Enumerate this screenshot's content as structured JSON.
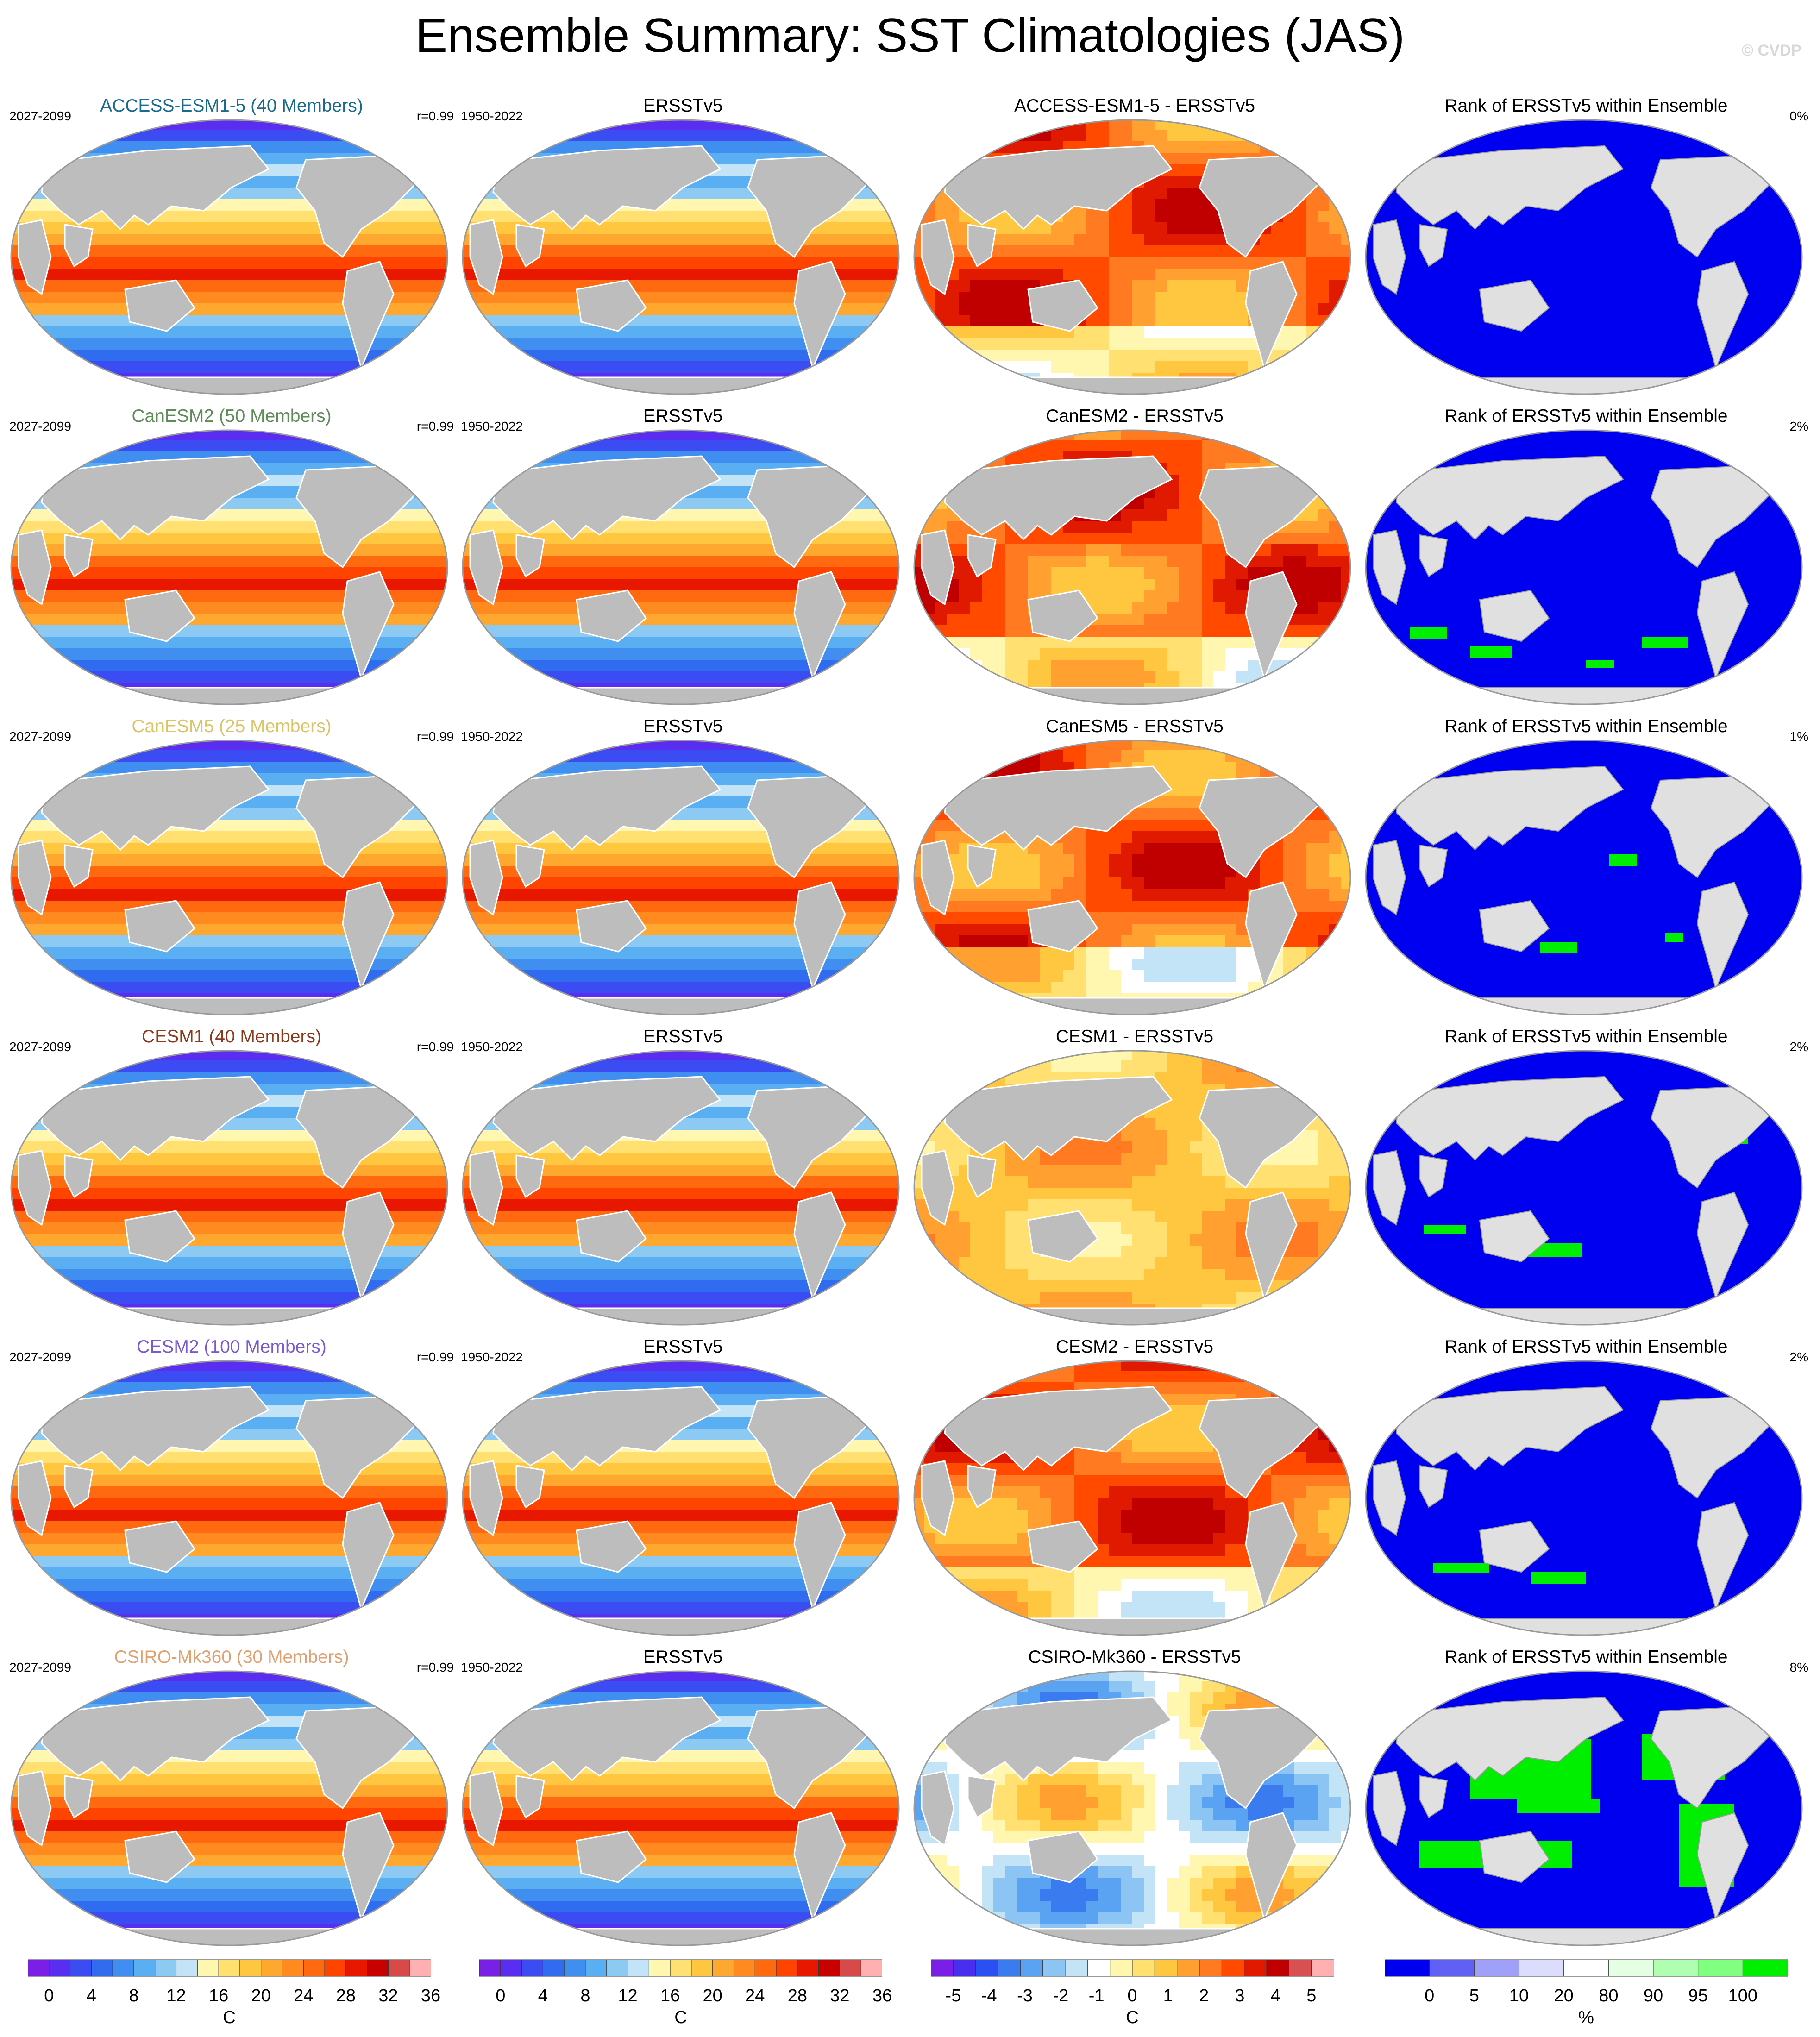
{
  "title": "Ensemble Summary: SST Climatologies (JAS)",
  "watermark": "© CVDP",
  "columns": [
    "model",
    "observed",
    "difference",
    "rank"
  ],
  "rows": [
    {
      "model_title": "ACCESS-ESM1-5 (40 Members)",
      "model_color": "#1a6a8e",
      "model_years": "2027-2099",
      "model_r": "r=0.99",
      "obs_title": "ERSSTv5",
      "obs_years": "1950-2022",
      "diff_title": "ACCESS-ESM1-5 - ERSSTv5",
      "rank_title": "Rank of ERSSTv5 within Ensemble",
      "rank_pct": "0%"
    },
    {
      "model_title": "CanESM2 (50 Members)",
      "model_color": "#5f8a5a",
      "model_years": "2027-2099",
      "model_r": "r=0.99",
      "obs_title": "ERSSTv5",
      "obs_years": "1950-2022",
      "diff_title": "CanESM2 - ERSSTv5",
      "rank_title": "Rank of ERSSTv5 within Ensemble",
      "rank_pct": "2%"
    },
    {
      "model_title": "CanESM5 (25 Members)",
      "model_color": "#d9c46a",
      "model_years": "2027-2099",
      "model_r": "r=0.99",
      "obs_title": "ERSSTv5",
      "obs_years": "1950-2022",
      "diff_title": "CanESM5 - ERSSTv5",
      "rank_title": "Rank of ERSSTv5 within Ensemble",
      "rank_pct": "1%"
    },
    {
      "model_title": "CESM1 (40 Members)",
      "model_color": "#8a3a1a",
      "model_years": "2027-2099",
      "model_r": "r=0.99",
      "obs_title": "ERSSTv5",
      "obs_years": "1950-2022",
      "diff_title": "CESM1 - ERSSTv5",
      "rank_title": "Rank of ERSSTv5 within Ensemble",
      "rank_pct": "2%"
    },
    {
      "model_title": "CESM2 (100 Members)",
      "model_color": "#7a5ad0",
      "model_years": "2027-2099",
      "model_r": "r=0.99",
      "obs_title": "ERSSTv5",
      "obs_years": "1950-2022",
      "diff_title": "CESM2 - ERSSTv5",
      "rank_title": "Rank of ERSSTv5 within Ensemble",
      "rank_pct": "2%"
    },
    {
      "model_title": "CSIRO-Mk360 (30 Members)",
      "model_color": "#e0a070",
      "model_years": "2027-2099",
      "model_r": "r=0.99",
      "obs_title": "ERSSTv5",
      "obs_years": "1950-2022",
      "diff_title": "CSIRO-Mk360 - ERSSTv5",
      "rank_title": "Rank of ERSSTv5 within Ensemble",
      "rank_pct": "8%"
    }
  ],
  "colorbars": [
    {
      "unit": "C",
      "ticks": [
        "0",
        "4",
        "8",
        "12",
        "16",
        "20",
        "24",
        "28",
        "32",
        "36"
      ],
      "colors": [
        "#7a1fe6",
        "#5a2ef0",
        "#3a4cf2",
        "#2f6cf0",
        "#3f8ef0",
        "#5aaef2",
        "#8ccaf4",
        "#c2e4f6",
        "#fff7b0",
        "#ffe070",
        "#ffc640",
        "#ffa830",
        "#ff8a20",
        "#ff6a10",
        "#ff4400",
        "#e81800",
        "#c80000",
        "#d84a4a",
        "#ffb0b0"
      ]
    },
    {
      "unit": "C",
      "ticks": [
        "0",
        "4",
        "8",
        "12",
        "16",
        "20",
        "24",
        "28",
        "32",
        "36"
      ],
      "colors": [
        "#7a1fe6",
        "#5a2ef0",
        "#3a4cf2",
        "#2f6cf0",
        "#3f8ef0",
        "#5aaef2",
        "#8ccaf4",
        "#c2e4f6",
        "#fff7b0",
        "#ffe070",
        "#ffc640",
        "#ffa830",
        "#ff8a20",
        "#ff6a10",
        "#ff4400",
        "#e81800",
        "#c80000",
        "#d84a4a",
        "#ffb0b0"
      ]
    },
    {
      "unit": "C",
      "ticks": [
        "-5",
        "-4",
        "-3",
        "-2",
        "-1",
        "0",
        "1",
        "2",
        "3",
        "4",
        "5"
      ],
      "colors": [
        "#7a1fe6",
        "#4a2ef0",
        "#2a50f2",
        "#3a7cf0",
        "#5aa2f2",
        "#8cc4f4",
        "#c2e4f6",
        "#ffffff",
        "#fff7b0",
        "#ffe070",
        "#ffc640",
        "#ffa030",
        "#ff7a20",
        "#ff4a00",
        "#e01a00",
        "#c00000",
        "#d85050",
        "#ffb0b0"
      ]
    },
    {
      "unit": "%",
      "ticks": [
        "0",
        "5",
        "10",
        "20",
        "80",
        "90",
        "95",
        "100"
      ],
      "colors": [
        "#0000f0",
        "#6060f4",
        "#a0a0f8",
        "#dcdcfc",
        "#ffffff",
        "#e4ffe4",
        "#b0ffb0",
        "#80ff80",
        "#00ee00"
      ]
    }
  ],
  "legend_meta": {
    "sst_clim_range": [
      0,
      36
    ],
    "diff_range": [
      -5,
      5
    ],
    "rank_range": [
      0,
      100
    ],
    "land_color": "#bdbdbd",
    "rank_land_color": "#e0e0e0"
  }
}
